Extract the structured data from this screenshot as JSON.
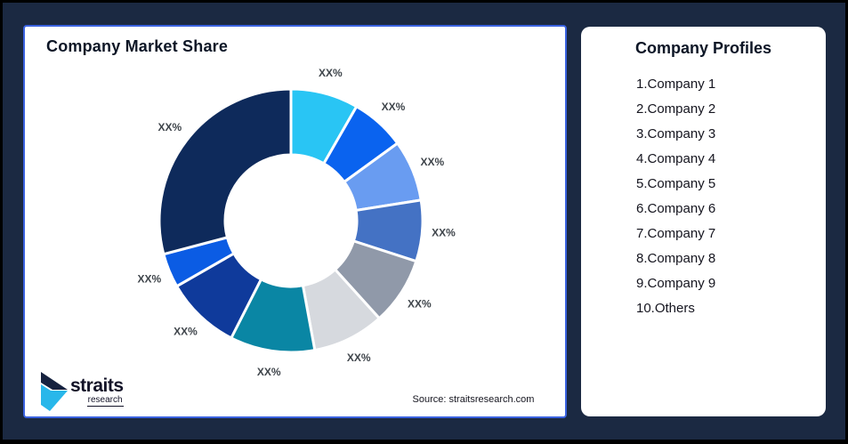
{
  "canvas": {
    "background_color": "#1B2942",
    "frame_color": "#000000"
  },
  "left_panel": {
    "title": "Company Market Share",
    "border_color": "#3A62E0",
    "source": "Source: straitsresearch.com",
    "logo": {
      "wordmark": "straits",
      "subtitle": "research",
      "mark_navy": "#16223F",
      "mark_cyan": "#28B7EA"
    }
  },
  "right_panel": {
    "title": "Company Profiles",
    "items": [
      "1.Company 1",
      "2.Company 2",
      "3.Company 3",
      "4.Company 4",
      "5.Company 5",
      "6.Company 6",
      "7.Company 7",
      "8.Company 8",
      "9.Company 9",
      "10.Others"
    ]
  },
  "chart_data": {
    "type": "pie",
    "subtype": "donut",
    "title": "Company Market Share",
    "hole_ratio": 0.5,
    "start_angle_deg": 0,
    "direction": "clockwise",
    "labels_position": "outside",
    "label_color": "#3F454B",
    "slice_separator_color": "#FFFFFF",
    "slices": [
      {
        "label": "XX%",
        "value": 8.3,
        "color": "#29C5F4"
      },
      {
        "label": "XX%",
        "value": 6.7,
        "color": "#0A63EF"
      },
      {
        "label": "XX%",
        "value": 7.5,
        "color": "#699CF1"
      },
      {
        "label": "XX%",
        "value": 7.5,
        "color": "#4472C4"
      },
      {
        "label": "XX%",
        "value": 8.3,
        "color": "#9099A9"
      },
      {
        "label": "XX%",
        "value": 8.8,
        "color": "#D6D9DE"
      },
      {
        "label": "XX%",
        "value": 10.4,
        "color": "#0A86A4"
      },
      {
        "label": "XX%",
        "value": 9.2,
        "color": "#0F3A9B"
      },
      {
        "label": "XX%",
        "value": 4.2,
        "color": "#0B5CE4"
      },
      {
        "label": "XX%",
        "value": 29.1,
        "color": "#0E2A5B"
      }
    ],
    "source": "Source: straitsresearch.com"
  }
}
